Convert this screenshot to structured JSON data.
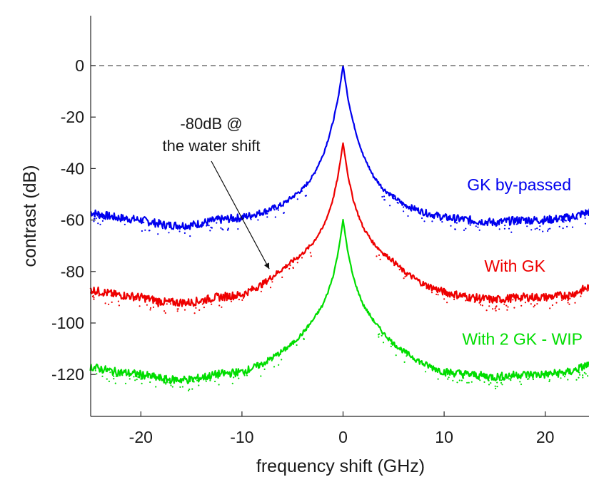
{
  "chart_data": {
    "type": "line",
    "title": "",
    "xlabel": "frequency shift (GHz)",
    "ylabel": "contrast (dB)",
    "xlim": [
      -25,
      25
    ],
    "ylim": [
      -135,
      20
    ],
    "xticks": [
      -20,
      -10,
      0,
      10,
      20
    ],
    "xtick_labels": [
      "-20",
      "-10",
      "0",
      "10",
      "20"
    ],
    "yticks": [
      0,
      -20,
      -40,
      -60,
      -80,
      -100,
      -120
    ],
    "ytick_labels": [
      "0",
      "-20",
      "-40",
      "-60",
      "-80",
      "-100",
      "-120"
    ],
    "grid": false,
    "reference_line": {
      "y": 0,
      "style": "dashed"
    },
    "x": [
      -25,
      -22.5,
      -20,
      -17.5,
      -15,
      -12.5,
      -10,
      -8,
      -6,
      -5,
      -4,
      -3,
      -2,
      -1.5,
      -1,
      -0.5,
      0,
      0.5,
      1,
      1.5,
      2,
      3,
      4,
      5,
      6,
      8,
      10,
      12.5,
      15,
      17.5,
      20,
      22.5,
      25
    ],
    "series": [
      {
        "name": "GK by-passed",
        "color": "#0000ee",
        "values": [
          -57,
          -59,
          -60,
          -62,
          -62,
          -60,
          -59,
          -57,
          -54,
          -51,
          -48,
          -43,
          -35,
          -29,
          -22,
          -13,
          0,
          -13,
          -22,
          -29,
          -35,
          -43,
          -48,
          -51,
          -54,
          -57,
          -59,
          -60,
          -61,
          -60,
          -60,
          -59,
          -56
        ]
      },
      {
        "name": "With GK",
        "color": "#ee0000",
        "values": [
          -87,
          -89,
          -90,
          -92,
          -92,
          -90,
          -89,
          -85,
          -79,
          -76,
          -73,
          -69,
          -63,
          -58,
          -52,
          -43,
          -30,
          -43,
          -52,
          -58,
          -63,
          -69,
          -73,
          -76,
          -80,
          -85,
          -88,
          -90,
          -91,
          -90,
          -90,
          -89,
          -85
        ]
      },
      {
        "name": "With 2 GK - WIP",
        "color": "#00dd00",
        "values": [
          -117,
          -119,
          -120,
          -122,
          -122,
          -120,
          -119,
          -116,
          -111,
          -108,
          -104,
          -99,
          -93,
          -88,
          -82,
          -73,
          -60,
          -73,
          -82,
          -88,
          -93,
          -99,
          -104,
          -108,
          -111,
          -116,
          -119,
          -120,
          -121,
          -120,
          -120,
          -119,
          -115
        ]
      }
    ],
    "annotations": [
      {
        "lines": [
          "-80dB @",
          "the water shift"
        ],
        "arrow_to": {
          "x": -7.3,
          "y": -79
        }
      }
    ]
  }
}
